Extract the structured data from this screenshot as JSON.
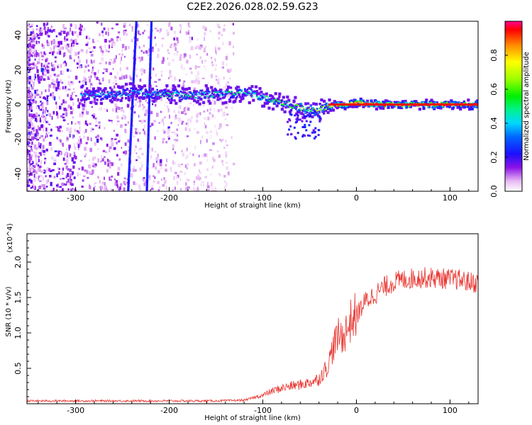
{
  "title": "C2E2.2026.028.02.59.G23",
  "chart_data": [
    {
      "type": "heatmap",
      "xlabel": "Height of straight line (km)",
      "ylabel": "Frequency (Hz)",
      "xlim": [
        -352,
        130
      ],
      "ylim": [
        -50,
        48
      ],
      "xticks": [
        -300,
        -200,
        -100,
        0,
        100
      ],
      "xtick_labels": [
        "-300",
        "-200",
        "-100",
        "0",
        "100"
      ],
      "yticks": [
        -40,
        -20,
        0,
        20,
        40
      ],
      "ytick_labels": [
        "-40",
        "-20",
        "0",
        "20",
        "40"
      ],
      "colorbar": {
        "label": "Normalized spectral amplitude",
        "range": [
          0,
          1
        ],
        "ticks": [
          0.0,
          0.2,
          0.4,
          0.6,
          0.8
        ],
        "tick_labels": [
          "0.0",
          "0.2",
          "0.4",
          "0.6",
          "0.8"
        ]
      },
      "ridge": {
        "height_km": [
          -295,
          -260,
          -240,
          -220,
          -200,
          -180,
          -160,
          -140,
          -120,
          -100,
          -80,
          -60,
          -45,
          -35,
          -20,
          -10,
          0,
          20,
          60,
          100,
          130
        ],
        "frequency_hz": [
          5,
          6,
          7,
          6,
          6,
          5,
          6,
          6,
          7,
          4,
          1,
          -2,
          -4,
          -2,
          0,
          0,
          1,
          0,
          0,
          0,
          0
        ],
        "peak_amplitude": [
          0.35,
          0.4,
          0.35,
          0.4,
          0.45,
          0.45,
          0.45,
          0.45,
          0.45,
          0.5,
          0.5,
          0.55,
          0.6,
          0.65,
          0.75,
          0.85,
          0.9,
          0.95,
          0.95,
          0.95,
          0.95
        ]
      },
      "vertical_streaks_km": [
        -240,
        -222
      ]
    },
    {
      "type": "line",
      "xlabel": "Height of straight line (km)",
      "ylabel": "SNR (10 * v/v)",
      "y_multiplier": "(x10^4)",
      "xlim": [
        -352,
        130
      ],
      "ylim": [
        0,
        2.4
      ],
      "xticks": [
        -300,
        -200,
        -100,
        0,
        100
      ],
      "xtick_labels": [
        "-300",
        "-200",
        "-100",
        "0",
        "100"
      ],
      "yticks": [
        0.5,
        1.0,
        1.5,
        2.0
      ],
      "ytick_labels": [
        "0.5",
        "1.0",
        "1.5",
        "2.0"
      ],
      "series": [
        {
          "name": "SNR",
          "color": "#e8322d",
          "x": [
            -352,
            -300,
            -250,
            -200,
            -150,
            -120,
            -100,
            -90,
            -80,
            -70,
            -60,
            -50,
            -40,
            -30,
            -25,
            -20,
            -15,
            -10,
            -5,
            0,
            5,
            10,
            20,
            30,
            40,
            50,
            60,
            70,
            80,
            90,
            100,
            110,
            120,
            130
          ],
          "y": [
            0.04,
            0.04,
            0.04,
            0.04,
            0.04,
            0.05,
            0.12,
            0.18,
            0.22,
            0.25,
            0.27,
            0.3,
            0.35,
            0.55,
            0.8,
            0.95,
            0.95,
            1.05,
            1.2,
            1.25,
            1.35,
            1.45,
            1.55,
            1.65,
            1.72,
            1.75,
            1.77,
            1.78,
            1.78,
            1.77,
            1.76,
            1.75,
            1.72,
            1.7
          ]
        }
      ]
    }
  ]
}
